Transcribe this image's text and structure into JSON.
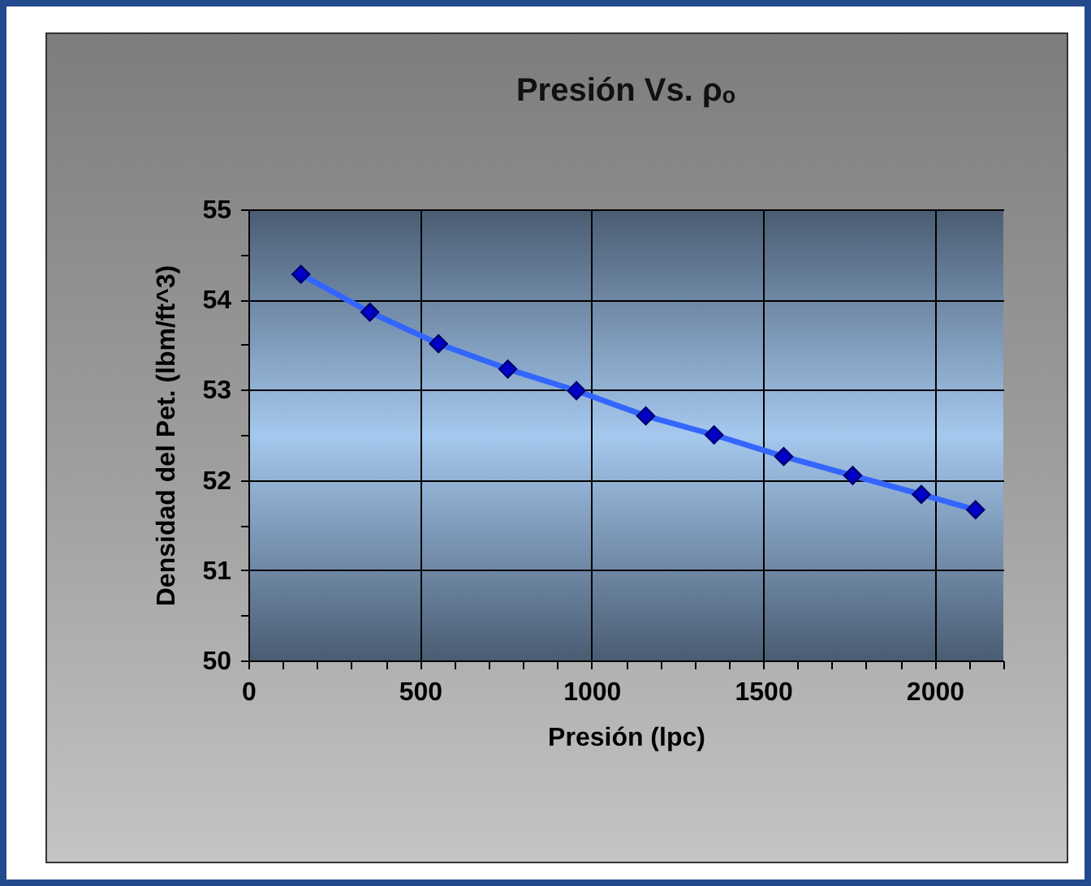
{
  "chart_data": {
    "type": "line",
    "title": "Presión Vs. ρₒ",
    "xlabel": "Presión  (lpc)",
    "ylabel": "Densidad del Pet.  (lbm/ft^3)",
    "x": [
      153,
      354,
      554,
      756,
      956,
      1158,
      1357,
      1560,
      1761,
      1961,
      2119
    ],
    "series": [
      {
        "color": "#3366ff",
        "values": [
          54.28,
          53.86,
          53.51,
          53.23,
          52.99,
          52.71,
          52.5,
          52.26,
          52.05,
          51.84,
          51.67
        ]
      }
    ],
    "xlim": [
      0,
      2200
    ],
    "xticks": [
      0,
      {
        "value": 100,
        "label": null
      },
      {
        "value": 200,
        "label": null
      },
      {
        "value": 300,
        "label": null
      },
      {
        "value": 400,
        "label": null
      },
      500,
      {
        "value": 600,
        "label": null
      },
      {
        "value": 700,
        "label": null
      },
      {
        "value": 800,
        "label": null
      },
      {
        "value": 900,
        "label": null
      },
      1000,
      {
        "value": 1100,
        "label": null
      },
      {
        "value": 1200,
        "label": null
      },
      {
        "value": 1300,
        "label": null
      },
      {
        "value": 1400,
        "label": null
      },
      1500,
      {
        "value": 1600,
        "label": null
      },
      {
        "value": 1700,
        "label": null
      },
      {
        "value": 1800,
        "label": null
      },
      {
        "value": 1900,
        "label": null
      },
      2000,
      {
        "value": 2100,
        "label": null
      },
      {
        "value": 2200,
        "label": null
      }
    ],
    "ylim": [
      50,
      55
    ],
    "yticks": [
      50,
      {
        "value": 50.5,
        "label": null
      },
      51,
      {
        "value": 51.5,
        "label": null
      },
      52,
      {
        "value": 52.5,
        "label": null
      },
      53,
      {
        "value": 53.5,
        "label": null
      },
      54,
      {
        "value": 54.5,
        "label": null
      },
      55
    ],
    "grid": true,
    "marker": "diamond",
    "line_style": "solid"
  }
}
